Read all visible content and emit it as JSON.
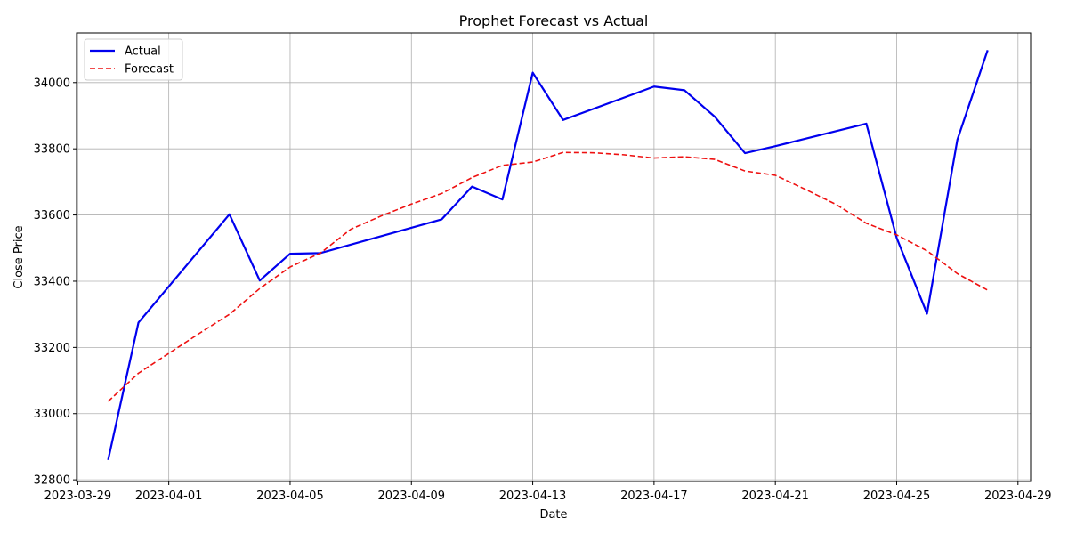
{
  "chart_data": {
    "type": "line",
    "title": "Prophet Forecast vs Actual",
    "xlabel": "Date",
    "ylabel": "Close Price",
    "xlim": [
      "2023-03-28T23:00",
      "2023-04-29T10:00"
    ],
    "ylim": [
      32795,
      34150
    ],
    "x_ticks": [
      "2023-03-29",
      "2023-04-01",
      "2023-04-05",
      "2023-04-09",
      "2023-04-13",
      "2023-04-17",
      "2023-04-21",
      "2023-04-25",
      "2023-04-29"
    ],
    "y_ticks": [
      32800,
      33000,
      33200,
      33400,
      33600,
      33800,
      34000
    ],
    "grid": true,
    "legend_position": "top-left",
    "series": [
      {
        "name": "Actual",
        "color": "#0000ee",
        "style": "solid",
        "points": [
          [
            "2023-03-30",
            32860
          ],
          [
            "2023-03-31",
            33275
          ],
          [
            "2023-04-03",
            33602
          ],
          [
            "2023-04-04",
            33402
          ],
          [
            "2023-04-05",
            33483
          ],
          [
            "2023-04-06",
            33485
          ],
          [
            "2023-04-10",
            33587
          ],
          [
            "2023-04-11",
            33686
          ],
          [
            "2023-04-12",
            33647
          ],
          [
            "2023-04-13",
            34030
          ],
          [
            "2023-04-14",
            33887
          ],
          [
            "2023-04-17",
            33988
          ],
          [
            "2023-04-18",
            33977
          ],
          [
            "2023-04-19",
            33897
          ],
          [
            "2023-04-20",
            33787
          ],
          [
            "2023-04-21",
            33808
          ],
          [
            "2023-04-24",
            33876
          ],
          [
            "2023-04-25",
            33531
          ],
          [
            "2023-04-26",
            33302
          ],
          [
            "2023-04-27",
            33827
          ],
          [
            "2023-04-28",
            34098
          ]
        ]
      },
      {
        "name": "Forecast",
        "color": "#ee1111",
        "style": "dashed",
        "points": [
          [
            "2023-03-30",
            33037
          ],
          [
            "2023-03-31",
            33122
          ],
          [
            "2023-04-01",
            33182
          ],
          [
            "2023-04-02",
            33242
          ],
          [
            "2023-04-03",
            33300
          ],
          [
            "2023-04-04",
            33378
          ],
          [
            "2023-04-05",
            33443
          ],
          [
            "2023-04-06",
            33485
          ],
          [
            "2023-04-07",
            33557
          ],
          [
            "2023-04-08",
            33597
          ],
          [
            "2023-04-09",
            33633
          ],
          [
            "2023-04-10",
            33665
          ],
          [
            "2023-04-11",
            33713
          ],
          [
            "2023-04-12",
            33750
          ],
          [
            "2023-04-13",
            33760
          ],
          [
            "2023-04-14",
            33789
          ],
          [
            "2023-04-15",
            33788
          ],
          [
            "2023-04-16",
            33782
          ],
          [
            "2023-04-17",
            33772
          ],
          [
            "2023-04-18",
            33776
          ],
          [
            "2023-04-19",
            33768
          ],
          [
            "2023-04-20",
            33733
          ],
          [
            "2023-04-21",
            33720
          ],
          [
            "2023-04-22",
            33677
          ],
          [
            "2023-04-23",
            33632
          ],
          [
            "2023-04-24",
            33575
          ],
          [
            "2023-04-25",
            33540
          ],
          [
            "2023-04-26",
            33492
          ],
          [
            "2023-04-27",
            33423
          ],
          [
            "2023-04-28",
            33373
          ]
        ]
      }
    ]
  }
}
